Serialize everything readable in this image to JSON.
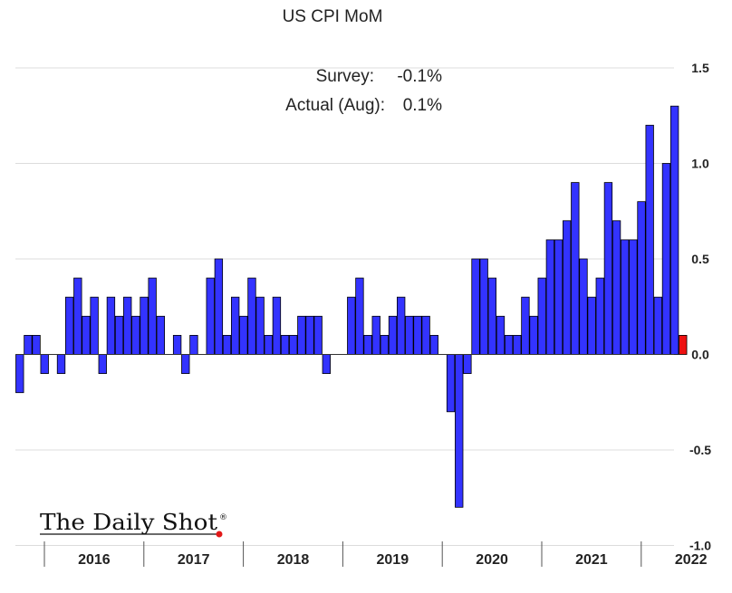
{
  "chart_data": {
    "type": "bar",
    "title": "US CPI MoM",
    "annotations": {
      "survey_label": "Survey:",
      "survey_value": "-0.1%",
      "actual_label": "Actual (Aug):",
      "actual_value": "0.1%"
    },
    "watermark": "The Daily Shot",
    "y_axis": {
      "position": "right",
      "ylim": [
        -1.0,
        1.5
      ],
      "ticks": [
        1.5,
        1.0,
        0.5,
        0.0,
        -0.5,
        -1.0
      ],
      "tick_labels": [
        "1.5",
        "1.0",
        "0.5",
        "0.0",
        "-0.5",
        "-1.0"
      ]
    },
    "grid": true,
    "years": [
      "2016",
      "2017",
      "2018",
      "2019",
      "2020",
      "2021",
      "2022"
    ],
    "series": [
      {
        "name": "",
        "color": "#3333ff",
        "values": [
          -0.2,
          0.1,
          0.1,
          -0.1,
          0.0,
          -0.1,
          0.3,
          0.4,
          0.2,
          0.3,
          -0.1,
          0.3,
          0.2,
          0.3,
          0.2,
          0.3,
          0.4,
          0.2,
          0.0,
          0.1,
          -0.1,
          0.1,
          0.0,
          0.4,
          0.5,
          0.1,
          0.3,
          0.2,
          0.4,
          0.3,
          0.1,
          0.3,
          0.1,
          0.1,
          0.2,
          0.2,
          0.2,
          -0.1,
          0.0,
          0.0,
          0.3,
          0.4,
          0.1,
          0.2,
          0.1,
          0.2,
          0.3,
          0.2,
          0.2,
          0.2,
          0.1,
          0.0,
          -0.3,
          -0.8,
          -0.1,
          0.5,
          0.5,
          0.4,
          0.2,
          0.1,
          0.1,
          0.3,
          0.2,
          0.4,
          0.6,
          0.6,
          0.7,
          0.9,
          0.5,
          0.3,
          0.4,
          0.9,
          0.7,
          0.6,
          0.6,
          0.8,
          1.2,
          0.3,
          1.0,
          1.3
        ]
      },
      {
        "name": "",
        "color": "#ee1111",
        "values": [
          0.1
        ]
      }
    ]
  }
}
